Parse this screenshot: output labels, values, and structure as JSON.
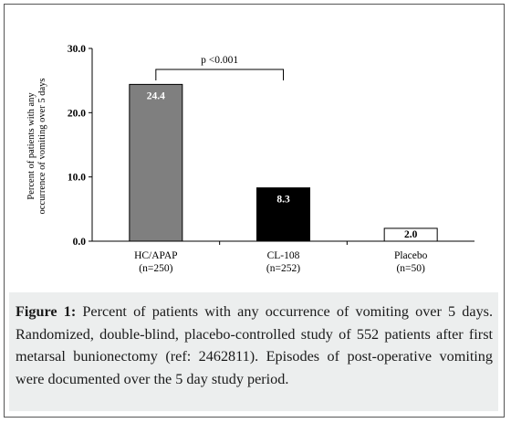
{
  "chart_data": {
    "type": "bar",
    "ylabel_line1": "Percent of patients with any",
    "ylabel_line2": "occurrence of vomiting over 5 days",
    "ylim": [
      0,
      30
    ],
    "yticks": [
      "0.0",
      "10.0",
      "20.0",
      "30.0"
    ],
    "ytick_values": [
      0,
      10,
      20,
      30
    ],
    "grid": false,
    "categories": [
      {
        "name": "HC/APAP",
        "n": "(n=250)"
      },
      {
        "name": "CL-108",
        "n": "(n=252)"
      },
      {
        "name": "Placebo",
        "n": "(n=50)"
      }
    ],
    "values": [
      24.4,
      8.3,
      2.0
    ],
    "value_labels": [
      "24.4",
      "8.3",
      "2.0"
    ],
    "colors": [
      "#7f7f7f",
      "#000000",
      "#ffffff"
    ],
    "label_colors": [
      "#ffffff",
      "#ffffff",
      "#000000"
    ],
    "significance": {
      "label": "p <0.001",
      "between": [
        0,
        1
      ]
    }
  },
  "caption": {
    "label": "Figure 1:",
    "text": " Percent of patients with any occurrence of vomiting over 5 days. Randomized, double-blind, placebo-controlled study of 552 patients after first metarsal bunionectomy (ref: 2462811). Episodes of post-operative vomiting were documented over the 5 day study period."
  }
}
